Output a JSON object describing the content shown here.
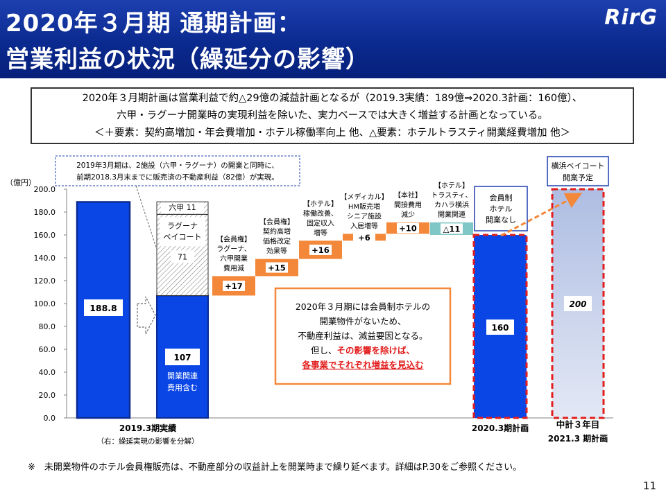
{
  "header": {
    "title_line1": "2020年３月期 通期計画：",
    "title_line2": "営業利益の状況（繰延分の影響）",
    "logo_text": "RirG"
  },
  "summary": {
    "line1": "2020年３月期計画は営業利益で約△29億の減益計画となるが（2019.3実績：189億⇒2020.3計画：160億）、",
    "line2": "六甲・ラグーナ開業時の実現利益を除いた、実力ベースでは大きく増益する計画となっている。",
    "line3": "＜＋要素：契約高増加・年会費増加・ホテル稼働率向上 他、△要素：ホテルトラスティ開業経費増加 他＞"
  },
  "chart_data": {
    "type": "bar",
    "ylabel": "（億円）",
    "ylim": [
      0,
      200
    ],
    "yticks": [
      "0.0",
      "20.0",
      "40.0",
      "60.0",
      "80.0",
      "100.0",
      "120.0",
      "140.0",
      "160.0",
      "180.0",
      "200.0"
    ],
    "bars": {
      "actual_2019": {
        "value": 188.8,
        "label": "188.8"
      },
      "split_base": {
        "value": 107,
        "label": "107",
        "note_line1": "開業関連",
        "note_line2": "費用含む"
      },
      "split_deferred": {
        "value": 71,
        "label": "71",
        "name_line1": "ラグーナ",
        "name_line2": "ベイコート"
      },
      "split_rokko": {
        "value": 11,
        "label": "六甲 11"
      },
      "plan_2020": {
        "value": 160,
        "label": "160"
      },
      "midterm_2021": {
        "value": 200,
        "label": "200"
      }
    },
    "steps": [
      {
        "value": 17,
        "label": "+17",
        "note_lines": [
          "【会員権】",
          "ラグーナ、",
          "六甲開業",
          "費用減"
        ]
      },
      {
        "value": 15,
        "label": "+15",
        "note_lines": [
          "【会員権】",
          "契約高増",
          "価格改定",
          "効果等"
        ]
      },
      {
        "value": 16,
        "label": "+16",
        "note_lines": [
          "【ホテル】",
          "稼働改善、",
          "固定収入",
          "増等"
        ]
      },
      {
        "value": 6,
        "label": "+6",
        "note_lines": [
          "【メディカル】",
          "HM販売増",
          "シニア施設",
          "入居増等"
        ]
      },
      {
        "value": 10,
        "label": "+10",
        "note_lines": [
          "【本社】",
          "間接費用",
          "減少"
        ]
      },
      {
        "value": -11,
        "label": "△11",
        "note_lines": [
          "【ホテル】",
          "トラスティ、",
          "カハラ横浜",
          "開業関連"
        ]
      }
    ],
    "categories": {
      "actual_line1": "2019.3期実績",
      "actual_line2": "（右：繰延実現の影響を分解）",
      "plan": "2020.3期計画",
      "mid_line1": "中計３年目",
      "mid_line2": "2021.3 期計画"
    },
    "annotations": {
      "top_note_line1": "2019年3月期は、2施設（六甲・ラグーナ）の開業と同時に、",
      "top_note_line2": "前期2018.3月末までに販売済の不動産利益（82億）が実現。",
      "member_note": [
        "会員制",
        "ホテル",
        "開業なし"
      ],
      "yokohama_note": [
        "横浜ベイコート",
        "開業予定"
      ],
      "orange_box": {
        "line1": "2020年３月期には会員制ホテルの",
        "line2": "開業物件がないため、",
        "line3": "不動産利益は、減益要因となる。",
        "line4_prefix": "但し、",
        "line4_red": "その影響を除けば、",
        "line5_red": "各事業でそれぞれ増益を見込む"
      }
    },
    "colors": {
      "blue": "#0a46e6",
      "orange": "#f4883a",
      "teal": "#7fc6c6",
      "red_dash": "#e21d1d",
      "text_red": "#e21d1d"
    }
  },
  "footer": {
    "note": "※　未開業物件のホテル会員権販売は、不動産部分の収益計上を開業時まで繰り延べます。詳細はP.30をご参照ください。",
    "page": "11"
  }
}
